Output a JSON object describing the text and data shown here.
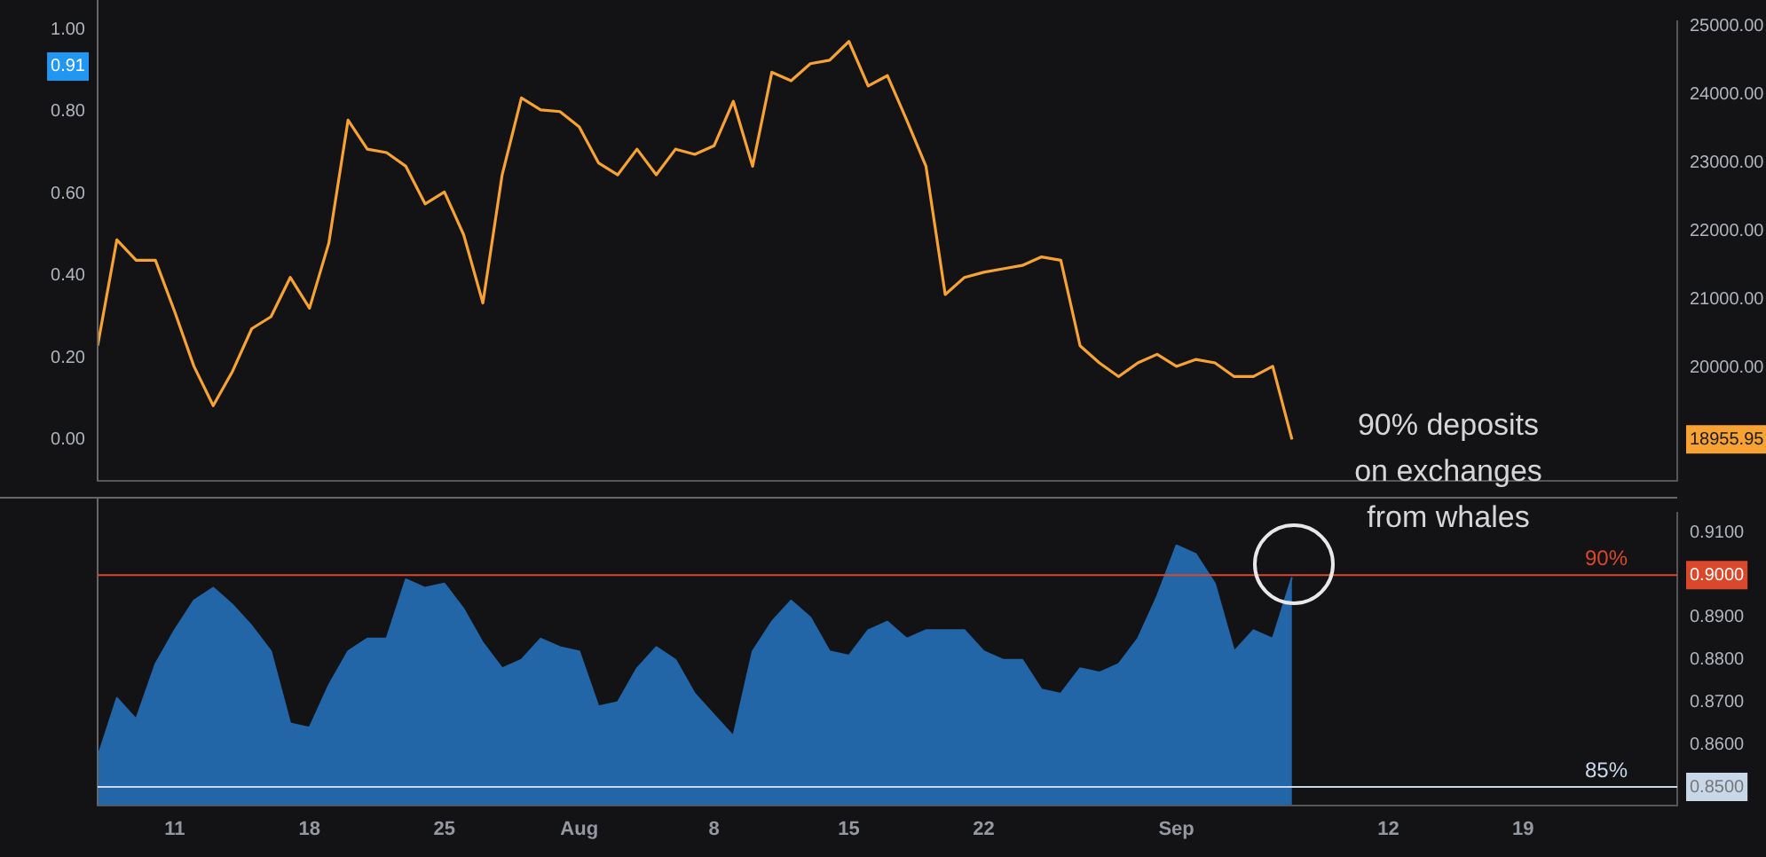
{
  "chart_data": [
    {
      "type": "line",
      "tick_labels": "y",
      "x": [
        "--07-07",
        "--07-08",
        "--07-09",
        "--07-10",
        "--07-11",
        "--07-12",
        "--07-13",
        "--07-14",
        "--07-15",
        "--07-16",
        "--07-17",
        "--07-18",
        "--07-19",
        "--07-20",
        "--07-21",
        "--07-22",
        "--07-23",
        "--07-24",
        "--07-25",
        "--07-26",
        "--07-27",
        "--07-28",
        "--07-29",
        "--07-30",
        "--07-31",
        "--08-01",
        "--08-02",
        "--08-03",
        "--08-04",
        "--08-05",
        "--08-06",
        "--08-07",
        "--08-08",
        "--08-09",
        "--08-10",
        "--08-11",
        "--08-12",
        "--08-13",
        "--08-14",
        "--08-15",
        "--08-16",
        "--08-17",
        "--08-18",
        "--08-19",
        "--08-20",
        "--08-21",
        "--08-22",
        "--08-23",
        "--08-24",
        "--08-25",
        "--08-26",
        "--08-27",
        "--08-28",
        "--08-29",
        "--08-30",
        "--08-31",
        "--09-01",
        "--09-02",
        "--09-03",
        "--09-04",
        "--09-05",
        "--09-06",
        "--09-07"
      ],
      "xlim": [
        "--07-07",
        "--09-27"
      ],
      "ylim": [
        -0.1,
        1.02
      ],
      "yticks": [
        {
          "value": 0,
          "label": "0.00"
        },
        {
          "value": 0.2,
          "label": "0.20"
        },
        {
          "value": 0.4,
          "label": "0.40"
        },
        {
          "value": 0.6,
          "label": "0.60"
        },
        {
          "value": 0.8,
          "label": "0.80"
        },
        {
          "value": 0.91,
          "label": "0.91"
        },
        {
          "value": 1,
          "label": "1.00"
        }
      ],
      "y2lim": [
        18350,
        25070
      ],
      "y2ticks": [
        {
          "value": 18955.95,
          "label": "18955.95"
        },
        {
          "value": 20000,
          "label": "20000.00"
        },
        {
          "value": 21000,
          "label": "21000.00"
        },
        {
          "value": 22000,
          "label": "22000.00"
        },
        {
          "value": 23000,
          "label": "23000.00"
        },
        {
          "value": 24000,
          "label": "24000.00"
        },
        {
          "value": 25000,
          "label": "25000.00"
        }
      ],
      "series": [
        {
          "color": "#f7a233",
          "axis": "y2",
          "values": [
            20325,
            21875,
            21575,
            21575,
            20825,
            20025,
            19450,
            19950,
            20575,
            20750,
            21325,
            20875,
            21825,
            23625,
            23200,
            23150,
            22950,
            22400,
            22575,
            21950,
            20950,
            22825,
            23950,
            23775,
            23750,
            23525,
            23000,
            22825,
            23200,
            22825,
            23200,
            23125,
            23250,
            23900,
            22950,
            24325,
            24200,
            24450,
            24500,
            24775,
            24125,
            24275,
            23625,
            22950,
            21075,
            21325,
            21400,
            21450,
            21500,
            21625,
            21575,
            20325,
            20075,
            19875,
            20075,
            20200,
            20025,
            20125,
            20075,
            19875,
            19875,
            20025,
            18955.95
          ]
        }
      ]
    },
    {
      "type": "area",
      "x": [
        "--07-07",
        "--07-08",
        "--07-09",
        "--07-10",
        "--07-11",
        "--07-12",
        "--07-13",
        "--07-14",
        "--07-15",
        "--07-16",
        "--07-17",
        "--07-18",
        "--07-19",
        "--07-20",
        "--07-21",
        "--07-22",
        "--07-23",
        "--07-24",
        "--07-25",
        "--07-26",
        "--07-27",
        "--07-28",
        "--07-29",
        "--07-30",
        "--07-31",
        "--08-01",
        "--08-02",
        "--08-03",
        "--08-04",
        "--08-05",
        "--08-06",
        "--08-07",
        "--08-08",
        "--08-09",
        "--08-10",
        "--08-11",
        "--08-12",
        "--08-13",
        "--08-14",
        "--08-15",
        "--08-16",
        "--08-17",
        "--08-18",
        "--08-19",
        "--08-20",
        "--08-21",
        "--08-22",
        "--08-23",
        "--08-24",
        "--08-25",
        "--08-26",
        "--08-27",
        "--08-28",
        "--08-29",
        "--08-30",
        "--08-31",
        "--09-01",
        "--09-02",
        "--09-03",
        "--09-04",
        "--09-05",
        "--09-06",
        "--09-07"
      ],
      "xlim": [
        "--07-07",
        "--09-27"
      ],
      "xticks": [
        {
          "value": "--07-11",
          "label": "11"
        },
        {
          "value": "--07-18",
          "label": "18"
        },
        {
          "value": "--07-25",
          "label": "25"
        },
        {
          "value": "--08-01",
          "label": "Aug"
        },
        {
          "value": "--08-08",
          "label": "8"
        },
        {
          "value": "--08-15",
          "label": "15"
        },
        {
          "value": "--08-22",
          "label": "22"
        },
        {
          "value": "--09-01",
          "label": "Sep"
        },
        {
          "value": "--09-12",
          "label": "12"
        },
        {
          "value": "--09-19",
          "label": "19"
        }
      ],
      "ylim": [
        0.8457,
        0.9147
      ],
      "yticks": [
        {
          "value": 0.85,
          "label": "0.8500"
        },
        {
          "value": 0.86,
          "label": "0.8600"
        },
        {
          "value": 0.87,
          "label": "0.8700"
        },
        {
          "value": 0.88,
          "label": "0.8800"
        },
        {
          "value": 0.89,
          "label": "0.8900"
        },
        {
          "value": 0.9,
          "label": "0.9000"
        },
        {
          "value": 0.91,
          "label": "0.9100"
        }
      ],
      "color": "#2266a8",
      "values": [
        0.857,
        0.871,
        0.866,
        0.879,
        0.887,
        0.894,
        0.897,
        0.893,
        0.888,
        0.882,
        0.865,
        0.864,
        0.874,
        0.882,
        0.885,
        0.885,
        0.899,
        0.897,
        0.898,
        0.892,
        0.884,
        0.878,
        0.88,
        0.885,
        0.883,
        0.882,
        0.869,
        0.87,
        0.878,
        0.883,
        0.88,
        0.872,
        0.867,
        0.862,
        0.882,
        0.889,
        0.894,
        0.89,
        0.882,
        0.881,
        0.887,
        0.889,
        0.885,
        0.887,
        0.887,
        0.887,
        0.882,
        0.88,
        0.88,
        0.873,
        0.872,
        0.878,
        0.877,
        0.879,
        0.885,
        0.895,
        0.907,
        0.905,
        0.898,
        0.882,
        0.887,
        0.885,
        0.8995
      ],
      "ref_lines": [
        {
          "axis": "y",
          "value": 0.9,
          "label": "90%",
          "color": "#d9482b"
        },
        {
          "axis": "y",
          "value": 0.85,
          "label": "85%",
          "color": "#c8d8e8"
        }
      ],
      "annotations": [
        "90% deposits on exchanges from whales"
      ]
    }
  ]
}
